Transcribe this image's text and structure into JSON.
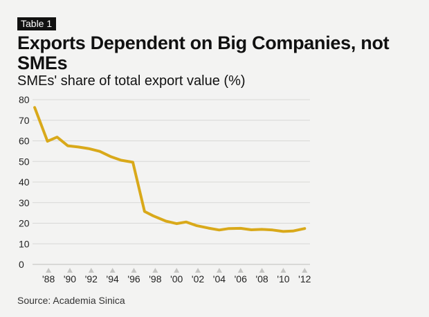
{
  "badge": "Table 1",
  "title": "Exports Dependent on Big Companies, not SMEs",
  "subtitle": "SMEs' share of total export value (%)",
  "source": "Source: Academia Sinica",
  "colors": {
    "line": "#d9a91a",
    "grid": "#d8d8d6",
    "marker": "#c4c4c2",
    "background": "#f3f3f2"
  },
  "chart_data": {
    "type": "line",
    "title": "Exports Dependent on Big Companies, not SMEs",
    "subtitle": "SMEs' share of total export value (%)",
    "xlabel": "",
    "ylabel": "",
    "ylim": [
      0,
      80
    ],
    "xlim": [
      1986.5,
      2012.5
    ],
    "yticks": [
      0,
      10,
      20,
      30,
      40,
      50,
      60,
      70,
      80
    ],
    "xticks": [
      1988,
      1990,
      1992,
      1994,
      1996,
      1998,
      2000,
      2002,
      2004,
      2006,
      2008,
      2010,
      2012
    ],
    "xtick_labels": [
      "'88",
      "'90",
      "'92",
      "'94",
      "'96",
      "'98",
      "'00",
      "'02",
      "'04",
      "'06",
      "'08",
      "'10",
      "'12"
    ],
    "grid": true,
    "series": [
      {
        "name": "SMEs' share of total export value (%)",
        "x": [
          1986.7,
          1987.9,
          1988.8,
          1989.8,
          1990.8,
          1991.8,
          1992.8,
          1993.8,
          1994.8,
          1995.9,
          1997.0,
          1997.8,
          1999.0,
          2000.0,
          2000.9,
          2001.9,
          2003.0,
          2004.0,
          2004.9,
          2006.0,
          2007.0,
          2008.0,
          2009.0,
          2010.0,
          2010.9,
          2012.0
        ],
        "values": [
          76.2,
          59.8,
          61.8,
          57.6,
          57.0,
          56.2,
          54.9,
          52.4,
          50.6,
          49.6,
          25.7,
          23.6,
          21.0,
          19.8,
          20.6,
          18.8,
          17.6,
          16.7,
          17.4,
          17.5,
          16.8,
          17.0,
          16.7,
          16.0,
          16.2,
          17.4
        ]
      }
    ]
  }
}
